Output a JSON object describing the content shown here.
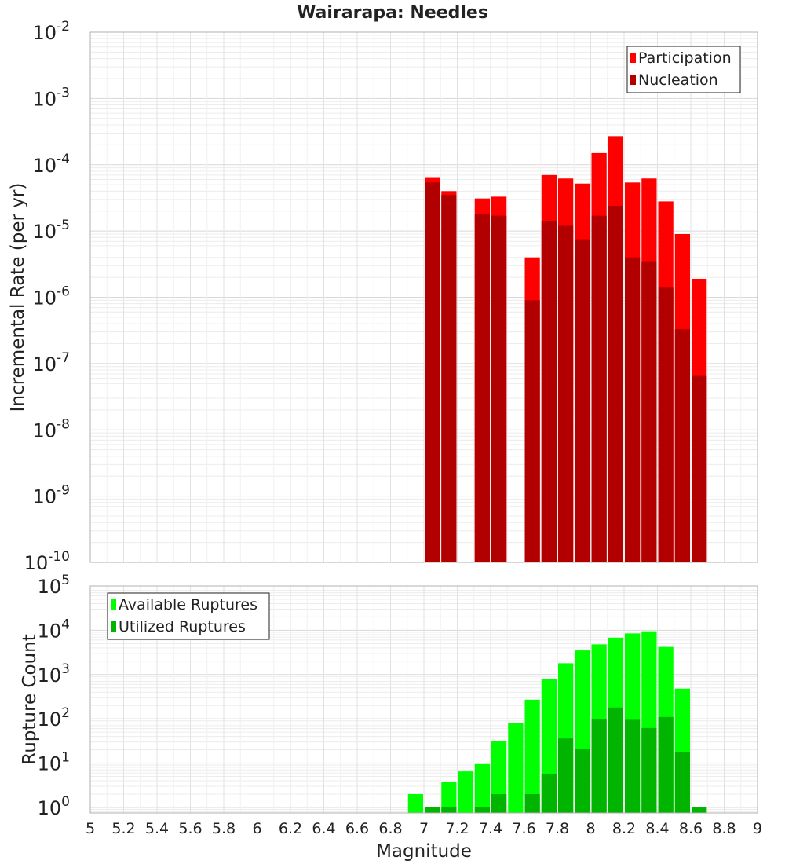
{
  "chart_data": [
    {
      "type": "bar",
      "title": "Wairarapa: Needles",
      "ylabel": "Incremental Rate (per yr)",
      "xlabel": "",
      "yscale": "log",
      "ylim": [
        1e-10,
        0.01
      ],
      "xlim": [
        5,
        9
      ],
      "bin_width": 0.1,
      "grid": true,
      "legend_position": "top-right",
      "y_tick_mantissa": "10",
      "y_tick_exponents": [
        "-10",
        "-9",
        "-8",
        "-7",
        "-6",
        "-5",
        "-4",
        "-3",
        "-2"
      ],
      "series": [
        {
          "name": "Participation",
          "color": "#ff0000",
          "x": [
            7.0,
            7.1,
            7.3,
            7.4,
            7.6,
            7.7,
            7.8,
            7.9,
            8.0,
            8.1,
            8.2,
            8.3,
            8.4,
            8.5,
            8.6
          ],
          "values": [
            6.5e-05,
            4e-05,
            3.1e-05,
            3.3e-05,
            4e-06,
            7e-05,
            6.2e-05,
            5.2e-05,
            0.00015,
            0.00027,
            5.4e-05,
            6.2e-05,
            2.8e-05,
            9e-06,
            1.9e-06
          ]
        },
        {
          "name": "Nucleation",
          "color": "#b20000",
          "x": [
            7.0,
            7.1,
            7.3,
            7.4,
            7.6,
            7.7,
            7.8,
            7.9,
            8.0,
            8.1,
            8.2,
            8.3,
            8.4,
            8.5,
            8.6
          ],
          "values": [
            5.4e-05,
            3.5e-05,
            1.8e-05,
            1.7e-05,
            9e-07,
            1.4e-05,
            1.2e-05,
            7.5e-06,
            1.7e-05,
            2.4e-05,
            4e-06,
            3.5e-06,
            1.4e-06,
            3.3e-07,
            6.5e-08
          ]
        }
      ]
    },
    {
      "type": "bar",
      "title": "",
      "ylabel": "Rupture Count",
      "xlabel": "Magnitude",
      "yscale": "log",
      "ylim": [
        0.75,
        100000
      ],
      "xlim": [
        5,
        9
      ],
      "bin_width": 0.1,
      "grid": true,
      "legend_position": "top-left",
      "y_tick_mantissa": "10",
      "y_tick_exponents": [
        "0",
        "1",
        "2",
        "3",
        "4",
        "5"
      ],
      "x_tick_labels": [
        "5",
        "5.2",
        "5.4",
        "5.6",
        "5.8",
        "6",
        "6.2",
        "6.4",
        "6.6",
        "6.8",
        "7",
        "7.2",
        "7.4",
        "7.6",
        "7.8",
        "8",
        "8.2",
        "8.4",
        "8.6",
        "8.8",
        "9"
      ],
      "series": [
        {
          "name": "Available Ruptures",
          "color": "#00ff00",
          "x": [
            6.9,
            7.0,
            7.1,
            7.2,
            7.3,
            7.4,
            7.5,
            7.6,
            7.7,
            7.8,
            7.9,
            8.0,
            8.1,
            8.2,
            8.3,
            8.4,
            8.5,
            8.6
          ],
          "values": [
            2,
            1,
            3.8,
            6.5,
            9.5,
            32,
            80,
            270,
            800,
            1800,
            3500,
            4800,
            6800,
            8500,
            9500,
            4200,
            480,
            1
          ]
        },
        {
          "name": "Utilized Ruptures",
          "color": "#00b400",
          "x": [
            7.0,
            7.1,
            7.3,
            7.4,
            7.6,
            7.7,
            7.8,
            7.9,
            8.0,
            8.1,
            8.2,
            8.3,
            8.4,
            8.5,
            8.6
          ],
          "values": [
            1,
            1,
            1,
            2,
            2,
            5.8,
            36,
            21,
            100,
            180,
            95,
            62,
            110,
            18,
            1
          ]
        }
      ]
    }
  ]
}
